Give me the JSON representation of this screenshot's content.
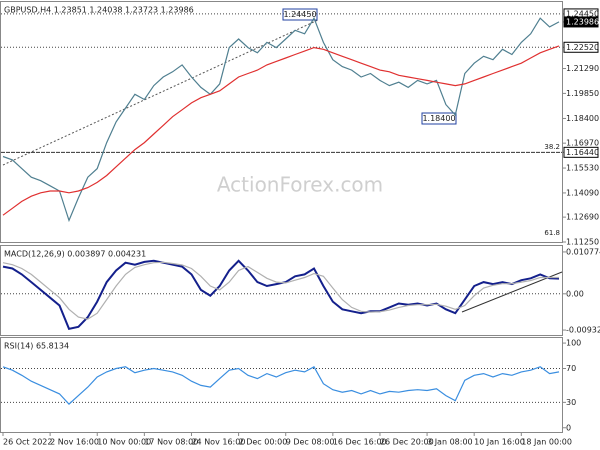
{
  "chart_data": [
    {
      "type": "line",
      "title": "GBPUSD,H4  1.23851 1.24038 1.23723 1.23986",
      "categories": [
        "26 Oct 2022",
        null,
        null,
        null,
        null,
        "2 Nov 16:00",
        null,
        null,
        null,
        null,
        "10 Nov 00:00",
        null,
        null,
        null,
        null,
        "17 Nov 08:00",
        null,
        null,
        null,
        null,
        "24 Nov 16:00",
        null,
        null,
        null,
        null,
        "2 Dec 00:00",
        null,
        null,
        null,
        null,
        "9 Dec 08:00",
        null,
        null,
        null,
        null,
        "16 Dec 16:00",
        null,
        null,
        null,
        null,
        "26 Dec 20:00",
        null,
        null,
        null,
        null,
        "3 Jan 08:00",
        null,
        null,
        null,
        null,
        "10 Jan 16:00",
        null,
        null,
        null,
        null,
        "18 Jan 00:00",
        null,
        null,
        null,
        null
      ],
      "series": [
        {
          "name": "GBPUSD",
          "color": "#4f7f90",
          "values": [
            1.162,
            1.16,
            1.155,
            1.15,
            1.148,
            1.145,
            1.142,
            1.125,
            1.138,
            1.15,
            1.155,
            1.17,
            1.182,
            1.19,
            1.198,
            1.195,
            1.203,
            1.208,
            1.211,
            1.215,
            1.208,
            1.202,
            1.198,
            1.204,
            1.225,
            1.23,
            1.225,
            1.222,
            1.228,
            1.225,
            1.23,
            1.235,
            1.233,
            1.242,
            1.228,
            1.218,
            1.214,
            1.212,
            1.208,
            1.21,
            1.206,
            1.203,
            1.205,
            1.202,
            1.206,
            1.204,
            1.206,
            1.192,
            1.186,
            1.21,
            1.216,
            1.22,
            1.218,
            1.224,
            1.221,
            1.228,
            1.233,
            1.242,
            1.237,
            1.2399
          ]
        },
        {
          "name": "MA",
          "color": "#e03030",
          "values": [
            1.128,
            1.132,
            1.136,
            1.139,
            1.141,
            1.142,
            1.142,
            1.141,
            1.142,
            1.144,
            1.147,
            1.151,
            1.156,
            1.161,
            1.166,
            1.17,
            1.175,
            1.18,
            1.185,
            1.189,
            1.193,
            1.196,
            1.198,
            1.2,
            1.204,
            1.208,
            1.21,
            1.212,
            1.215,
            1.217,
            1.219,
            1.221,
            1.223,
            1.225,
            1.224,
            1.222,
            1.22,
            1.218,
            1.216,
            1.214,
            1.212,
            1.211,
            1.209,
            1.208,
            1.207,
            1.206,
            1.205,
            1.204,
            1.203,
            1.204,
            1.206,
            1.208,
            1.21,
            1.212,
            1.214,
            1.216,
            1.219,
            1.222,
            1.224,
            1.226
          ]
        }
      ],
      "ylim": [
        1.1125,
        1.2514
      ],
      "yticks": [
        {
          "value": 1.2445,
          "label": "1.24450"
        },
        1.23986,
        {
          "value": 1.2252,
          "label": "1.22520"
        },
        {
          "value": 1.2129,
          "label": "1.21290"
        },
        {
          "value": 1.1985,
          "label": "1.19850"
        },
        {
          "value": 1.184,
          "label": "1.18400"
        },
        {
          "value": 1.1697,
          "label": "1.16970"
        },
        {
          "value": 1.1644,
          "label": "1.16440"
        },
        {
          "value": 1.1553,
          "label": "1.15530"
        },
        {
          "value": 1.1409,
          "label": "1.14090"
        },
        {
          "value": 1.1269,
          "label": "1.12690"
        },
        {
          "value": 1.1125,
          "label": "1.11250"
        }
      ],
      "annotations": [
        "1.24450",
        "1.18400",
        "38.2",
        "61.8",
        "ActionForex.com"
      ]
    },
    {
      "type": "line",
      "title": "MACD(12,26,9) 0.003897 0.004231",
      "series": [
        {
          "name": "MACD",
          "color": "#14208c",
          "values": [
            0.007,
            0.0065,
            0.005,
            0.003,
            0.001,
            -0.001,
            -0.003,
            -0.009,
            -0.0085,
            -0.006,
            -0.002,
            0.003,
            0.006,
            0.008,
            0.0075,
            0.0082,
            0.0085,
            0.008,
            0.0075,
            0.007,
            0.005,
            0.001,
            -0.0005,
            0.002,
            0.006,
            0.0085,
            0.006,
            0.003,
            0.002,
            0.0025,
            0.003,
            0.0045,
            0.005,
            0.0065,
            0.002,
            -0.002,
            -0.004,
            -0.0045,
            -0.005,
            -0.0045,
            -0.0045,
            -0.0035,
            -0.0025,
            -0.0028,
            -0.0025,
            -0.003,
            -0.0025,
            -0.004,
            -0.005,
            -0.0015,
            0.002,
            0.003,
            0.0025,
            0.003,
            0.0025,
            0.0035,
            0.004,
            0.005,
            0.004,
            0.0039
          ]
        },
        {
          "name": "Signal",
          "color": "#b0b0b0",
          "values": [
            0.008,
            0.0075,
            0.0065,
            0.005,
            0.003,
            0.001,
            -0.001,
            -0.004,
            -0.006,
            -0.0065,
            -0.005,
            -0.0015,
            0.002,
            0.005,
            0.0068,
            0.0075,
            0.008,
            0.0081,
            0.0078,
            0.0074,
            0.0065,
            0.0045,
            0.002,
            0.001,
            0.003,
            0.006,
            0.007,
            0.0055,
            0.004,
            0.003,
            0.0028,
            0.0035,
            0.0042,
            0.0052,
            0.0045,
            0.0015,
            -0.0015,
            -0.0035,
            -0.0045,
            -0.0047,
            -0.0046,
            -0.0042,
            -0.0035,
            -0.003,
            -0.0028,
            -0.0028,
            -0.0027,
            -0.0032,
            -0.004,
            -0.003,
            -0.0005,
            0.0015,
            0.0022,
            0.0026,
            0.0026,
            0.003,
            0.0034,
            0.0042,
            0.0042,
            0.0042
          ]
        }
      ],
      "ylim": [
        -0.0106,
        0.0123
      ],
      "yticks": [
        0.010774,
        {
          "value": 0,
          "label": "0.00"
        },
        -0.009328
      ]
    },
    {
      "type": "line",
      "title": "RSI(14) 65.8134",
      "series": [
        {
          "name": "RSI",
          "color": "#3a8ee0",
          "values": [
            72,
            68,
            62,
            55,
            50,
            45,
            40,
            28,
            38,
            48,
            60,
            66,
            70,
            72,
            65,
            68,
            70,
            68,
            66,
            62,
            55,
            50,
            48,
            58,
            68,
            70,
            62,
            58,
            64,
            60,
            65,
            68,
            66,
            72,
            52,
            45,
            42,
            44,
            40,
            44,
            40,
            43,
            42,
            44,
            45,
            44,
            46,
            38,
            32,
            56,
            62,
            64,
            60,
            64,
            62,
            66,
            68,
            72,
            64,
            66
          ]
        }
      ],
      "ylim": [
        -5,
        106
      ],
      "yticks": [
        100,
        70,
        30,
        0
      ]
    }
  ]
}
